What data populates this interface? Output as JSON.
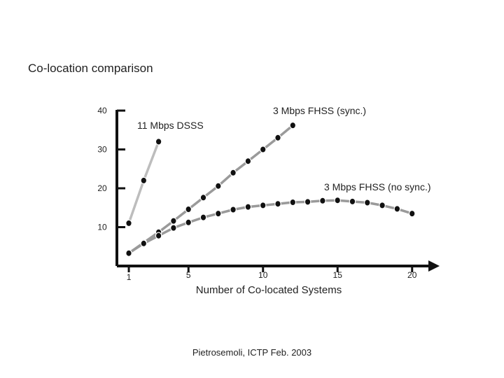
{
  "title": "Co-location comparison",
  "footer": "Pietrosemoli, ICTP Feb. 2003",
  "colors": {
    "axis": "#111111",
    "line_light": "#bdbdbd",
    "line_mid": "#9a9a9a",
    "marker": "#111111"
  },
  "chart_data": {
    "type": "line",
    "xlabel": "Number of Co-located Systems",
    "ylabel": "",
    "xlim": [
      1,
      21
    ],
    "ylim": [
      0,
      42
    ],
    "x_ticks": [
      1,
      5,
      10,
      15,
      20
    ],
    "y_ticks": [
      10,
      20,
      30,
      40
    ],
    "grid": false,
    "series": [
      {
        "name": "11 Mbps DSSS",
        "x": [
          1,
          2,
          3
        ],
        "y": [
          11,
          22,
          32
        ]
      },
      {
        "name": "3 Mbps FHSS (sync.)",
        "x": [
          1,
          2,
          3,
          4,
          5,
          6,
          7,
          8,
          9,
          10,
          11,
          12
        ],
        "y": [
          3.3,
          6,
          8.7,
          11.6,
          14.6,
          17.6,
          20.6,
          24,
          27,
          30,
          33,
          36.2
        ]
      },
      {
        "name": "3 Mbps FHSS (no sync.)",
        "x": [
          1,
          2,
          3,
          4,
          5,
          6,
          7,
          8,
          9,
          10,
          11,
          12,
          13,
          14,
          15,
          16,
          17,
          18,
          19,
          20
        ],
        "y": [
          3.3,
          5.8,
          7.8,
          9.8,
          11.2,
          12.5,
          13.5,
          14.5,
          15.2,
          15.6,
          16,
          16.4,
          16.5,
          16.8,
          16.9,
          16.6,
          16.3,
          15.6,
          14.7,
          13.5
        ]
      }
    ]
  }
}
